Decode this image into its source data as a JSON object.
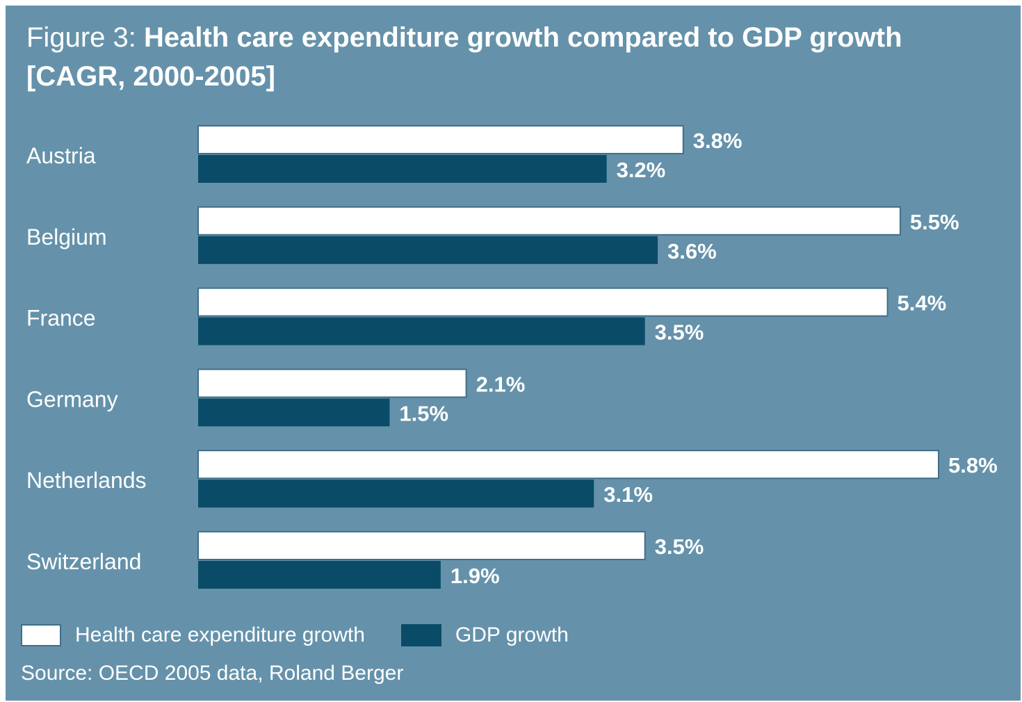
{
  "title": {
    "lead": "Figure 3:",
    "main": "Health care expenditure growth compared to GDP growth",
    "line2": "[CAGR, 2000-2005]"
  },
  "legend": {
    "health": "Health care expenditure growth",
    "gdp": "GDP growth"
  },
  "source": "Source: OECD 2005 data, Roland Berger",
  "colors": {
    "background": "#6592aa",
    "health_bar": "#ffffff",
    "gdp_bar": "#0a4c68",
    "text": "#ffffff"
  },
  "chart_data": {
    "type": "bar",
    "orientation": "horizontal",
    "title": "Health care expenditure growth compared to GDP growth [CAGR, 2000-2005]",
    "categories": [
      "Austria",
      "Belgium",
      "France",
      "Germany",
      "Netherlands",
      "Switzerland"
    ],
    "series": [
      {
        "name": "Health care expenditure growth",
        "values": [
          3.8,
          5.5,
          5.4,
          2.1,
          5.8,
          3.5
        ],
        "labels": [
          "3.8%",
          "5.5%",
          "5.4%",
          "2.1%",
          "5.8%",
          "3.5%"
        ]
      },
      {
        "name": "GDP growth",
        "values": [
          3.2,
          3.6,
          3.5,
          1.5,
          3.1,
          1.9
        ],
        "labels": [
          "3.2%",
          "3.6%",
          "3.5%",
          "1.5%",
          "3.1%",
          "1.9%"
        ]
      }
    ],
    "unit": "%",
    "xlim": [
      0,
      5.8
    ],
    "grid": false,
    "legend_position": "bottom-left"
  }
}
